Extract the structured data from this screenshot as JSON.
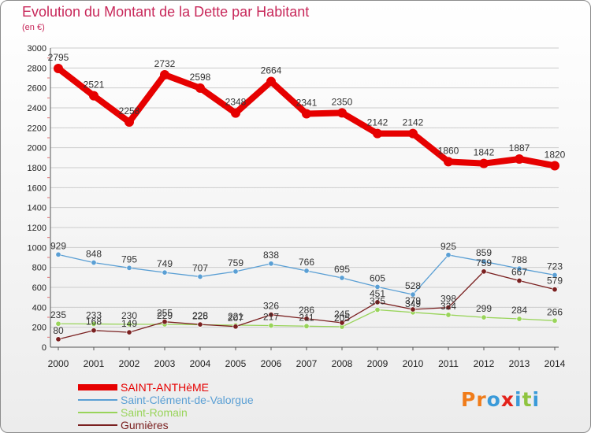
{
  "title": "Evolution du Montant de la Dette par Habitant",
  "subtitle": "(en €)",
  "logo": {
    "text": "Proxiti",
    "colors": [
      "#f07c1a",
      "#f07c1a",
      "#3a9ad9",
      "#e3221a",
      "#3a9ad9",
      "#8fc43f",
      "#3a9ad9"
    ]
  },
  "colors": {
    "title": "#c8285a",
    "axis": "#555555",
    "grid": "#cccccc",
    "tick_dashes": "#e07070"
  },
  "chart_data": {
    "type": "line",
    "title": "Evolution du Montant de la Dette par Habitant",
    "subtitle": "(en €)",
    "xlabel": "",
    "ylabel": "",
    "x": [
      2000,
      2001,
      2002,
      2003,
      2004,
      2005,
      2006,
      2007,
      2008,
      2009,
      2010,
      2011,
      2012,
      2013,
      2014
    ],
    "ylim": [
      0,
      3000
    ],
    "yticks": [
      0,
      200,
      400,
      600,
      800,
      1000,
      1200,
      1400,
      1600,
      1800,
      2000,
      2200,
      2400,
      2600,
      2800,
      3000
    ],
    "grid": "horizontal",
    "legend_position": "bottom-left",
    "series": [
      {
        "name": "SAINT-ANTHèME",
        "color": "#e60000",
        "label_color": "#333333",
        "style": "thick",
        "values": [
          2795,
          2521,
          2258,
          2732,
          2598,
          2348,
          2664,
          2341,
          2350,
          2142,
          2142,
          1860,
          1842,
          1887,
          1820
        ]
      },
      {
        "name": "Saint-Clément-de-Valorgue",
        "color": "#5a9fd4",
        "label_color": "#333333",
        "style": "thin",
        "values": [
          929,
          848,
          795,
          749,
          707,
          759,
          838,
          766,
          695,
          605,
          528,
          925,
          859,
          788,
          723
        ]
      },
      {
        "name": "Saint-Romain",
        "color": "#99d45a",
        "label_color": "#333333",
        "style": "thin",
        "values": [
          235,
          233,
          230,
          229,
          225,
          221,
          217,
          211,
          205,
          375,
          349,
          324,
          299,
          284,
          266
        ]
      },
      {
        "name": "Gumières",
        "color": "#7a2020",
        "label_color": "#333333",
        "style": "thin",
        "values": [
          80,
          168,
          149,
          255,
          228,
          207,
          326,
          286,
          245,
          451,
          379,
          398,
          759,
          667,
          579
        ]
      }
    ]
  }
}
